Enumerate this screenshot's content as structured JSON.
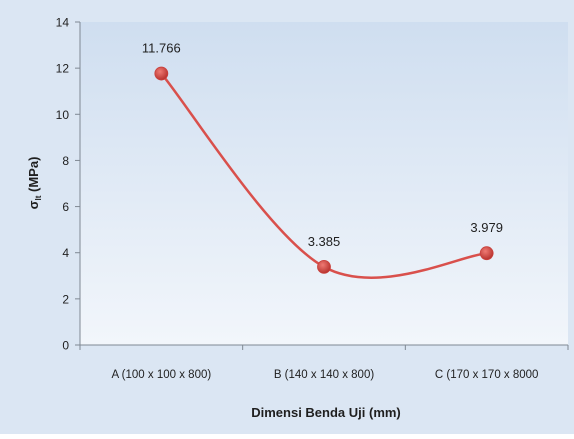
{
  "chart_data": {
    "type": "line",
    "smooth": true,
    "categories": [
      "A (100 x 100 x 800)",
      "B (140 x 140 x 800)",
      "C (170 x 170 x 8000"
    ],
    "series": [
      {
        "values": [
          11.766,
          3.385,
          3.979
        ]
      }
    ],
    "data_labels": [
      "11.766",
      "3.385",
      "3.979"
    ],
    "xlabel": "Dimensi Benda Uji (mm)",
    "ylabel": "σlt (MPa)",
    "ylabel_main": "σ",
    "ylabel_sub": "lt",
    "ylabel_unit": " (MPa)",
    "ylim": [
      0,
      14
    ],
    "yticks": [
      0,
      2,
      4,
      6,
      8,
      10,
      12,
      14
    ],
    "grid": false,
    "legend": "none",
    "colors": {
      "line": "#d9504c",
      "marker": "#c9403c",
      "plot_bg_top": "#cfdef0",
      "plot_bg_bottom": "#f2f6fb",
      "frame_bg": "#dbe6f3",
      "axis": "#7f8893",
      "text": "#1f1f1f"
    }
  }
}
